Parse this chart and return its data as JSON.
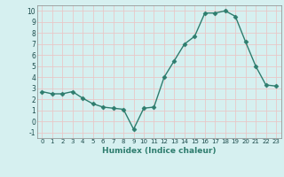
{
  "x": [
    0,
    1,
    2,
    3,
    4,
    5,
    6,
    7,
    8,
    9,
    10,
    11,
    12,
    13,
    14,
    15,
    16,
    17,
    18,
    19,
    20,
    21,
    22,
    23
  ],
  "y": [
    2.7,
    2.5,
    2.5,
    2.7,
    2.1,
    1.6,
    1.3,
    1.2,
    1.1,
    -0.7,
    1.2,
    1.3,
    4.0,
    5.5,
    7.0,
    7.7,
    9.8,
    9.8,
    10.0,
    9.5,
    7.2,
    5.0,
    3.3,
    3.2
  ],
  "xlabel": "Humidex (Indice chaleur)",
  "xlim": [
    -0.5,
    23.5
  ],
  "ylim": [
    -1.5,
    10.5
  ],
  "yticks": [
    -1,
    0,
    1,
    2,
    3,
    4,
    5,
    6,
    7,
    8,
    9,
    10
  ],
  "xticks": [
    0,
    1,
    2,
    3,
    4,
    5,
    6,
    7,
    8,
    9,
    10,
    11,
    12,
    13,
    14,
    15,
    16,
    17,
    18,
    19,
    20,
    21,
    22,
    23
  ],
  "line_color": "#2e7d6e",
  "bg_color": "#d6f0f0",
  "grid_color": "#e8c8c8",
  "marker_size": 2.5,
  "line_width": 1.0
}
